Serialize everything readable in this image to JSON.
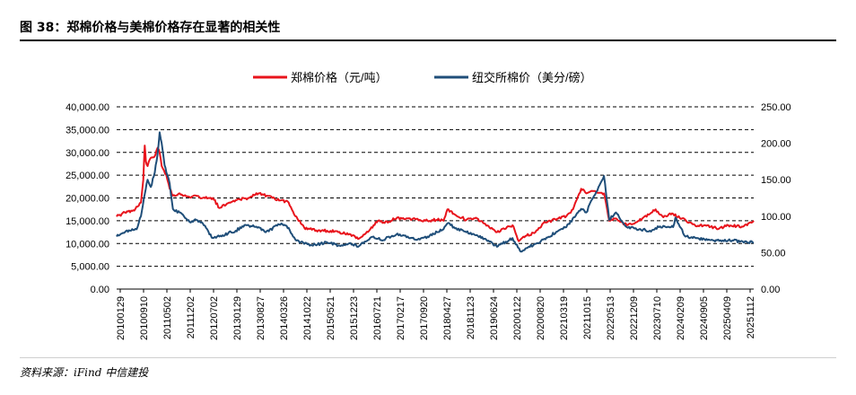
{
  "figure": {
    "title": "图 38：郑棉价格与美棉价格存在显著的相关性",
    "source": "资料来源：iFind  中信建投"
  },
  "colors": {
    "zhengmian": "#e8141c",
    "ice": "#1f4e79",
    "grid": "#000000"
  },
  "chart_data": {
    "type": "line",
    "grid": "horizontal dashed",
    "legend_position": "top-center",
    "y_left": {
      "min": 0,
      "max": 40000,
      "ticks": [
        0,
        5000,
        10000,
        15000,
        20000,
        25000,
        30000,
        35000,
        40000
      ],
      "tick_labels": [
        "0.00",
        "5,000.00",
        "10,000.00",
        "15,000.00",
        "20,000.00",
        "25,000.00",
        "30,000.00",
        "35,000.00",
        "40,000.00"
      ]
    },
    "y_right": {
      "min": 0,
      "max": 250,
      "ticks": [
        0,
        50,
        100,
        150,
        200,
        250
      ],
      "tick_labels": [
        "0.00",
        "50.00",
        "100.00",
        "150.00",
        "200.00",
        "250.00"
      ]
    },
    "x_range": [
      "2010-01-29",
      "2026-02-20"
    ],
    "x_tick_labels": [
      "20100129",
      "20100910",
      "20110502",
      "20111202",
      "20120702",
      "20130129",
      "20130827",
      "20140326",
      "20141022",
      "20150521",
      "20151223",
      "20160721",
      "20170217",
      "20170920",
      "20180427",
      "20181123",
      "20190624",
      "20200122",
      "20200820",
      "20210319",
      "20211015",
      "20220513",
      "20221209",
      "20230710",
      "20240209",
      "20240905",
      "20250409",
      "20251112"
    ],
    "series": [
      {
        "name": "郑棉价格（元/吨）",
        "axis": "left",
        "points": [
          [
            "2010-01-29",
            15900
          ],
          [
            "2010-04-15",
            16800
          ],
          [
            "2010-07-01",
            17300
          ],
          [
            "2010-08-20",
            18300
          ],
          [
            "2010-09-10",
            19000
          ],
          [
            "2010-10-01",
            24000
          ],
          [
            "2010-10-15",
            31500
          ],
          [
            "2010-10-25",
            28000
          ],
          [
            "2010-11-10",
            27000
          ],
          [
            "2010-12-01",
            28500
          ],
          [
            "2011-01-10",
            29000
          ],
          [
            "2011-02-10",
            31000
          ],
          [
            "2011-03-01",
            30000
          ],
          [
            "2011-03-20",
            27000
          ],
          [
            "2011-04-10",
            26000
          ],
          [
            "2011-05-02",
            25000
          ],
          [
            "2011-06-01",
            22000
          ],
          [
            "2011-07-01",
            20500
          ],
          [
            "2011-09-01",
            21000
          ],
          [
            "2011-12-02",
            20200
          ],
          [
            "2012-02-01",
            20500
          ],
          [
            "2012-04-01",
            20000
          ],
          [
            "2012-07-02",
            20000
          ],
          [
            "2012-09-01",
            17800
          ],
          [
            "2012-12-01",
            19000
          ],
          [
            "2013-01-29",
            19500
          ],
          [
            "2013-06-01",
            20000
          ],
          [
            "2013-08-27",
            21000
          ],
          [
            "2013-10-01",
            20800
          ],
          [
            "2014-01-01",
            20000
          ],
          [
            "2014-03-26",
            19500
          ],
          [
            "2014-06-01",
            19000
          ],
          [
            "2014-08-01",
            16000
          ],
          [
            "2014-10-22",
            13500
          ],
          [
            "2015-01-01",
            13000
          ],
          [
            "2015-05-21",
            12800
          ],
          [
            "2015-09-01",
            12500
          ],
          [
            "2015-12-23",
            12000
          ],
          [
            "2016-03-01",
            11000
          ],
          [
            "2016-05-01",
            12000
          ],
          [
            "2016-07-21",
            14000
          ],
          [
            "2016-09-01",
            15000
          ],
          [
            "2016-11-01",
            14500
          ],
          [
            "2017-02-17",
            15500
          ],
          [
            "2017-06-01",
            15500
          ],
          [
            "2017-09-20",
            15200
          ],
          [
            "2017-12-01",
            15000
          ],
          [
            "2018-03-01",
            15200
          ],
          [
            "2018-04-27",
            15000
          ],
          [
            "2018-06-01",
            17500
          ],
          [
            "2018-08-01",
            16500
          ],
          [
            "2018-11-23",
            15200
          ],
          [
            "2019-03-01",
            15500
          ],
          [
            "2019-06-24",
            13500
          ],
          [
            "2019-09-01",
            12500
          ],
          [
            "2020-01-22",
            14000
          ],
          [
            "2020-03-20",
            10500
          ],
          [
            "2020-05-01",
            11500
          ],
          [
            "2020-08-20",
            12500
          ],
          [
            "2020-11-01",
            14500
          ],
          [
            "2021-03-19",
            15500
          ],
          [
            "2021-06-01",
            16000
          ],
          [
            "2021-08-01",
            17500
          ],
          [
            "2021-10-15",
            22000
          ],
          [
            "2021-12-01",
            21000
          ],
          [
            "2022-02-01",
            21500
          ],
          [
            "2022-05-13",
            21000
          ],
          [
            "2022-07-01",
            15000
          ],
          [
            "2022-09-01",
            15500
          ],
          [
            "2022-12-09",
            14000
          ],
          [
            "2023-04-01",
            15000
          ],
          [
            "2023-07-10",
            16500
          ],
          [
            "2023-09-01",
            17500
          ],
          [
            "2023-11-01",
            16000
          ],
          [
            "2024-02-09",
            16500
          ],
          [
            "2024-05-01",
            15500
          ],
          [
            "2024-09-05",
            13800
          ],
          [
            "2024-12-01",
            14000
          ],
          [
            "2025-04-09",
            13300
          ],
          [
            "2025-07-01",
            14000
          ],
          [
            "2025-11-12",
            13700
          ],
          [
            "2026-02-20",
            15000
          ]
        ]
      },
      {
        "name": "纽交所棉价（美分/磅）",
        "axis": "right",
        "points": [
          [
            "2010-01-29",
            72
          ],
          [
            "2010-04-15",
            78
          ],
          [
            "2010-06-01",
            80
          ],
          [
            "2010-08-01",
            82
          ],
          [
            "2010-09-10",
            100
          ],
          [
            "2010-10-15",
            130
          ],
          [
            "2010-11-10",
            150
          ],
          [
            "2010-12-10",
            140
          ],
          [
            "2011-01-15",
            160
          ],
          [
            "2011-02-10",
            185
          ],
          [
            "2011-03-01",
            215
          ],
          [
            "2011-03-20",
            200
          ],
          [
            "2011-04-15",
            170
          ],
          [
            "2011-05-02",
            160
          ],
          [
            "2011-06-01",
            145
          ],
          [
            "2011-07-01",
            110
          ],
          [
            "2011-09-01",
            105
          ],
          [
            "2011-12-02",
            92
          ],
          [
            "2012-02-01",
            95
          ],
          [
            "2012-04-01",
            90
          ],
          [
            "2012-07-02",
            70
          ],
          [
            "2012-09-01",
            72
          ],
          [
            "2013-01-29",
            80
          ],
          [
            "2013-05-01",
            88
          ],
          [
            "2013-08-27",
            85
          ],
          [
            "2013-11-01",
            78
          ],
          [
            "2014-03-26",
            90
          ],
          [
            "2014-06-01",
            84
          ],
          [
            "2014-08-01",
            68
          ],
          [
            "2014-10-22",
            62
          ],
          [
            "2015-01-01",
            60
          ],
          [
            "2015-05-21",
            64
          ],
          [
            "2015-09-01",
            60
          ],
          [
            "2015-12-23",
            63
          ],
          [
            "2016-03-01",
            58
          ],
          [
            "2016-07-21",
            72
          ],
          [
            "2016-10-01",
            67
          ],
          [
            "2017-02-17",
            75
          ],
          [
            "2017-06-01",
            72
          ],
          [
            "2017-09-20",
            68
          ],
          [
            "2017-12-01",
            72
          ],
          [
            "2018-04-27",
            82
          ],
          [
            "2018-06-01",
            90
          ],
          [
            "2018-08-01",
            85
          ],
          [
            "2018-11-23",
            78
          ],
          [
            "2019-03-01",
            74
          ],
          [
            "2019-06-24",
            65
          ],
          [
            "2019-09-01",
            58
          ],
          [
            "2020-01-22",
            70
          ],
          [
            "2020-04-01",
            52
          ],
          [
            "2020-08-20",
            62
          ],
          [
            "2020-11-01",
            68
          ],
          [
            "2021-03-19",
            80
          ],
          [
            "2021-06-01",
            85
          ],
          [
            "2021-10-15",
            110
          ],
          [
            "2021-12-01",
            105
          ],
          [
            "2022-02-01",
            125
          ],
          [
            "2022-05-13",
            155
          ],
          [
            "2022-07-01",
            95
          ],
          [
            "2022-09-01",
            105
          ],
          [
            "2022-12-09",
            85
          ],
          [
            "2023-04-01",
            82
          ],
          [
            "2023-07-10",
            80
          ],
          [
            "2023-10-01",
            85
          ],
          [
            "2024-02-09",
            85
          ],
          [
            "2024-03-01",
            98
          ],
          [
            "2024-06-01",
            72
          ],
          [
            "2024-09-05",
            70
          ],
          [
            "2025-01-01",
            68
          ],
          [
            "2025-04-09",
            66
          ],
          [
            "2025-07-01",
            67
          ],
          [
            "2025-11-12",
            65
          ],
          [
            "2026-02-20",
            64
          ]
        ]
      }
    ]
  }
}
